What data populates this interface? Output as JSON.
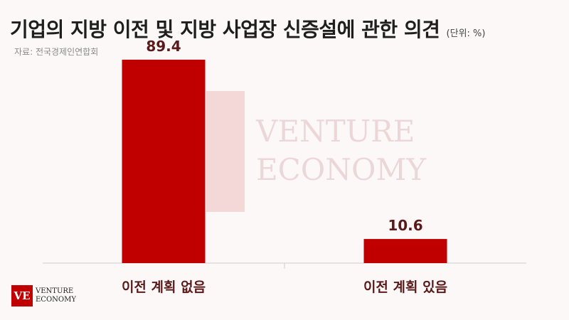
{
  "title": "기업의 지방 이전 및 지방 사업장 신증설에 관한 의견",
  "unit": "(단위: %)",
  "source": "자료: 전국경제인연합회",
  "brand": {
    "line1": "VENTURE",
    "line2": "ECONOMY",
    "mark": "VE"
  },
  "colors": {
    "bar": "#c00000",
    "label": "#5a1a1a",
    "axis": "#cccccc"
  },
  "chart_data": {
    "type": "bar",
    "categories": [
      "이전 계획 없음",
      "이전 계획 있음"
    ],
    "values": [
      89.4,
      10.6
    ],
    "value_labels": [
      "89.4",
      "10.6"
    ],
    "ylim": [
      0,
      100
    ],
    "grid": false
  }
}
